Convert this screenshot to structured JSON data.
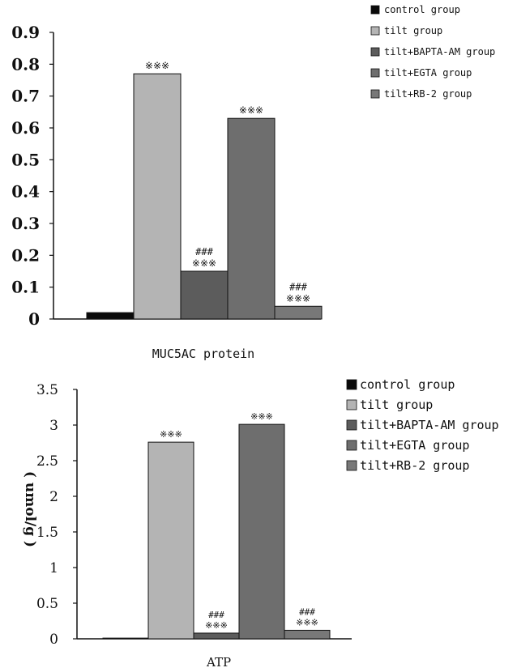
{
  "chart_data": [
    {
      "type": "bar",
      "xlabel": "MUC5AC  protein",
      "ylabel": "",
      "ylim": [
        0,
        0.9
      ],
      "yticks": [
        "0",
        "0.1",
        "0.2",
        "0.3",
        "0.4",
        "0.5",
        "0.6",
        "0.7",
        "0.8",
        "0.9"
      ],
      "legend_position": "top-right",
      "series": [
        {
          "name": "control group",
          "value": 0.02,
          "color": "#0a0a0a",
          "annotation": []
        },
        {
          "name": "tilt group",
          "value": 0.77,
          "color": "#b4b4b4",
          "annotation": [
            "※※※"
          ]
        },
        {
          "name": "tilt+BAPTA-AM group",
          "value": 0.15,
          "color": "#5c5c5c",
          "annotation": [
            "###",
            "※※※"
          ]
        },
        {
          "name": "tilt+EGTA group",
          "value": 0.63,
          "color": "#6e6e6e",
          "annotation": [
            "※※※"
          ]
        },
        {
          "name": "tilt+RB-2 group",
          "value": 0.04,
          "color": "#787878",
          "annotation": [
            "###",
            "※※※"
          ]
        }
      ]
    },
    {
      "type": "bar",
      "xlabel": "ATP",
      "ylabel": "( umol/g )",
      "ylim": [
        0,
        3.5
      ],
      "yticks": [
        "0",
        "0.5",
        "1",
        "1.5",
        "2",
        "2.5",
        "3",
        "3.5"
      ],
      "legend_position": "top-right",
      "series": [
        {
          "name": "control group",
          "value": 0.01,
          "color": "#0a0a0a",
          "annotation": []
        },
        {
          "name": " tilt group",
          "value": 2.76,
          "color": "#b4b4b4",
          "annotation": [
            "※※※"
          ]
        },
        {
          "name": "tilt+BAPTA-AM group",
          "value": 0.08,
          "color": "#5c5c5c",
          "annotation": [
            "###",
            "※※※"
          ]
        },
        {
          "name": "tilt+EGTA group",
          "value": 3.01,
          "color": "#6e6e6e",
          "annotation": [
            "※※※"
          ]
        },
        {
          "name": "tilt+RB-2 group",
          "value": 0.12,
          "color": "#787878",
          "annotation": [
            "###",
            "※※※"
          ]
        }
      ]
    }
  ]
}
